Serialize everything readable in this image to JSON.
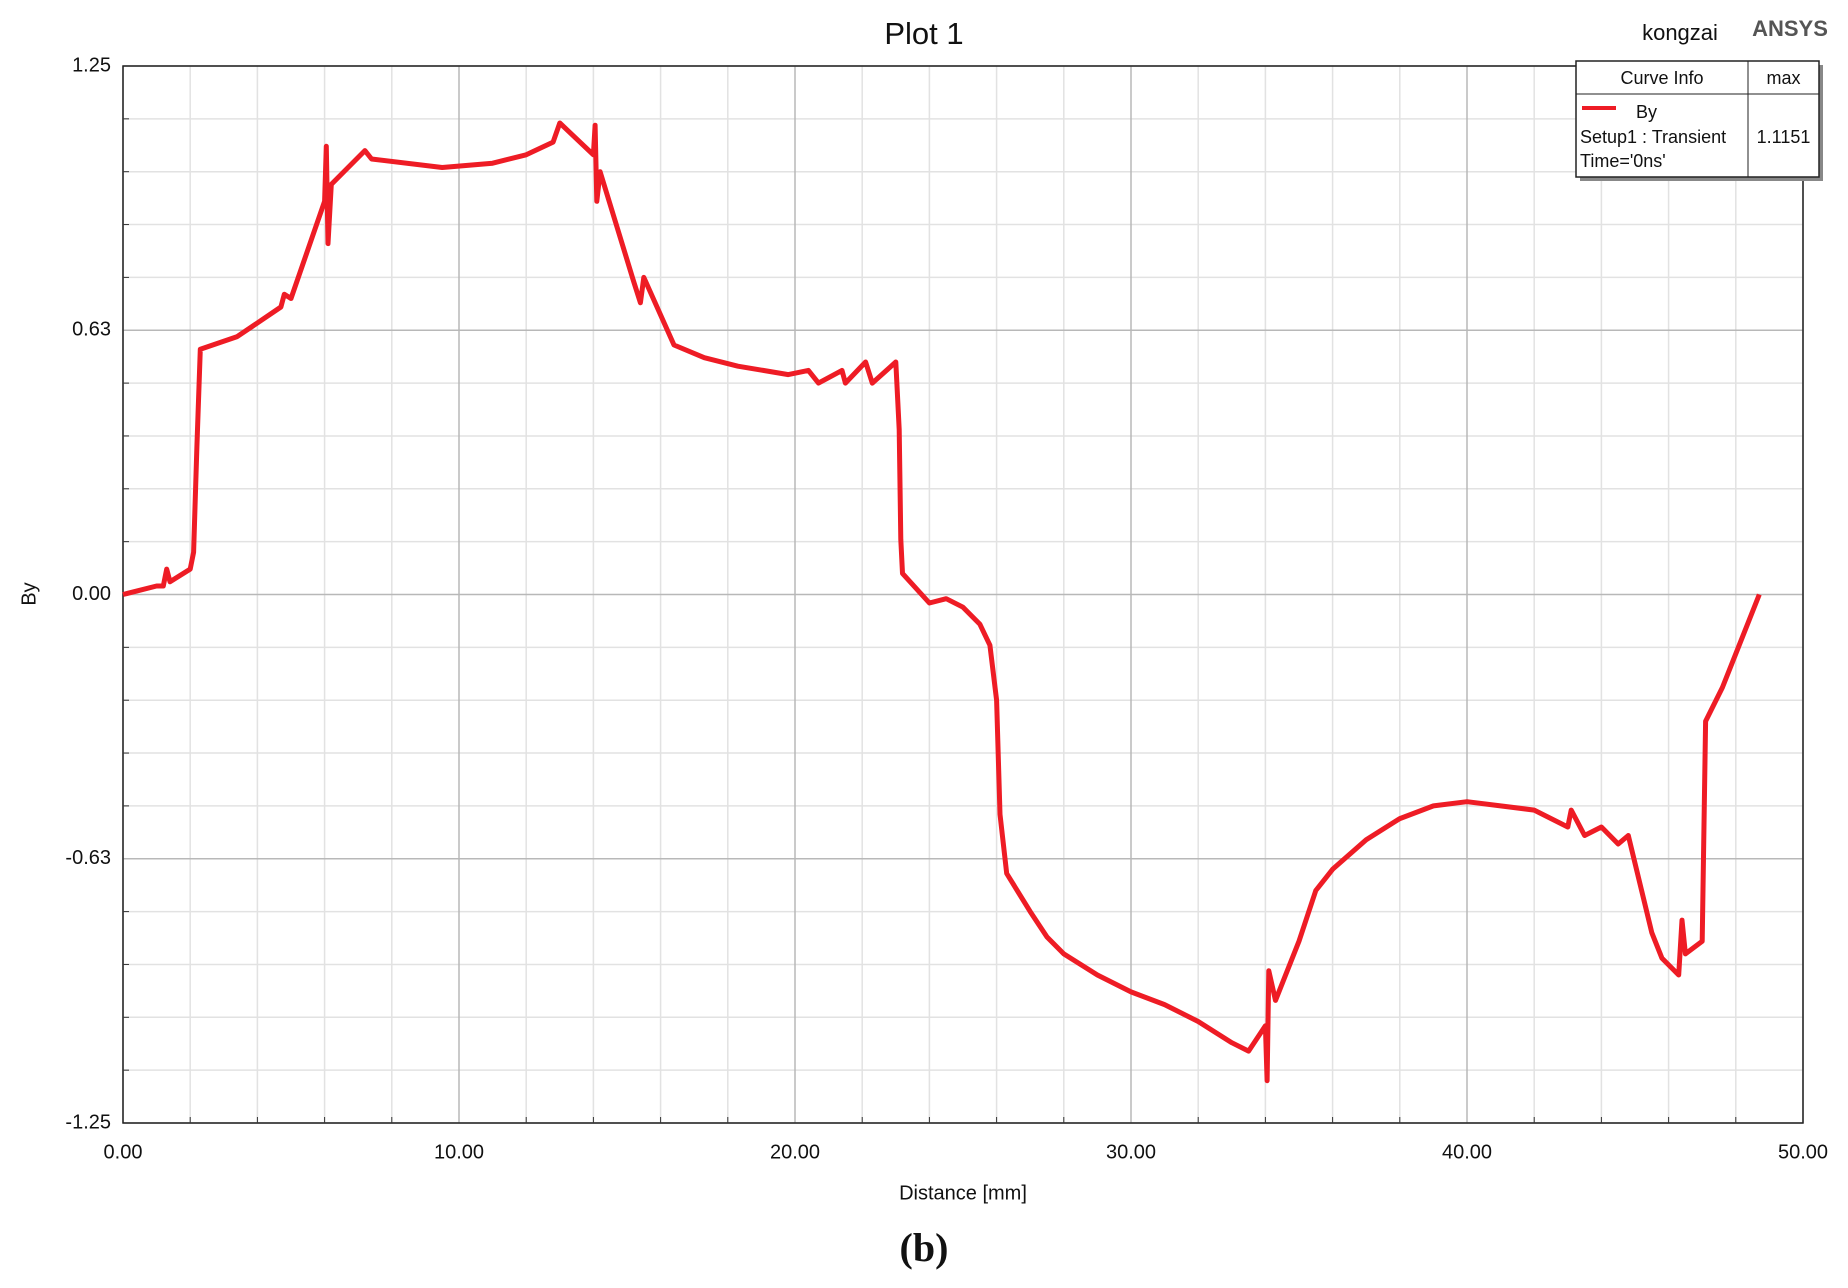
{
  "chart_data": {
    "type": "line",
    "title": "Plot 1",
    "user": "kongzai",
    "brand": "ANSYS",
    "caption": "(b)",
    "xlabel": "Distance [mm]",
    "ylabel": "By",
    "xlim": [
      0,
      50
    ],
    "ylim": [
      -1.25,
      1.25
    ],
    "xticks": [
      {
        "value": 0,
        "label": "0.00"
      },
      {
        "value": 10,
        "label": "10.00"
      },
      {
        "value": 20,
        "label": "20.00"
      },
      {
        "value": 30,
        "label": "30.00"
      },
      {
        "value": 40,
        "label": "40.00"
      },
      {
        "value": 50,
        "label": "50.00"
      }
    ],
    "yticks": [
      {
        "value": -1.25,
        "label": "-1.25"
      },
      {
        "value": -0.625,
        "label": "-0.63"
      },
      {
        "value": 0,
        "label": "0.00"
      },
      {
        "value": 0.625,
        "label": "0.63"
      },
      {
        "value": 1.25,
        "label": "1.25"
      }
    ],
    "grid": true,
    "legend": {
      "header": [
        "Curve Info",
        "max"
      ],
      "lines": [
        "Setup1 : Transient",
        "Time='0ns'"
      ],
      "max": 1.1151
    },
    "x": [
      0,
      1.0,
      1.2,
      1.3,
      1.4,
      2.0,
      2.1,
      2.2,
      2.3,
      3.4,
      4.7,
      4.8,
      5.0,
      6.0,
      6.05,
      6.1,
      6.2,
      7.2,
      7.4,
      9.5,
      11.0,
      12.0,
      12.8,
      13.0,
      14.0,
      14.05,
      14.1,
      14.2,
      15.2,
      15.4,
      15.5,
      16.4,
      17.3,
      18.3,
      19.8,
      20.4,
      20.7,
      21.4,
      21.5,
      22.1,
      22.3,
      23.0,
      23.1,
      23.15,
      23.2,
      24.0,
      24.5,
      25.0,
      25.5,
      25.8,
      26.0,
      26.1,
      26.3,
      27.0,
      27.5,
      28.0,
      29.0,
      30.0,
      31.0,
      32.0,
      33.0,
      33.5,
      34.0,
      34.05,
      34.1,
      34.3,
      35.0,
      35.5,
      36.0,
      37.0,
      38.0,
      39.0,
      40.0,
      41.0,
      42.0,
      43.0,
      43.1,
      43.5,
      44.0,
      44.5,
      44.8,
      45.5,
      45.8,
      46.3,
      46.4,
      46.5,
      47.0,
      47.1,
      47.6,
      48.1,
      48.7
    ],
    "series": [
      {
        "name": "By",
        "color": "#ee1c25",
        "values": [
          0,
          0.02,
          0.02,
          0.06,
          0.03,
          0.06,
          0.1,
          0.35,
          0.58,
          0.61,
          0.68,
          0.71,
          0.7,
          0.93,
          1.06,
          0.83,
          0.97,
          1.05,
          1.03,
          1.01,
          1.02,
          1.04,
          1.07,
          1.1151,
          1.04,
          1.11,
          0.93,
          1.0,
          0.74,
          0.69,
          0.75,
          0.59,
          0.56,
          0.54,
          0.52,
          0.53,
          0.5,
          0.53,
          0.5,
          0.55,
          0.5,
          0.55,
          0.39,
          0.13,
          0.05,
          -0.02,
          -0.01,
          -0.03,
          -0.07,
          -0.12,
          -0.25,
          -0.52,
          -0.66,
          -0.75,
          -0.81,
          -0.85,
          -0.9,
          -0.94,
          -0.97,
          -1.01,
          -1.06,
          -1.08,
          -1.02,
          -1.15,
          -0.89,
          -0.96,
          -0.82,
          -0.7,
          -0.65,
          -0.58,
          -0.53,
          -0.5,
          -0.49,
          -0.5,
          -0.51,
          -0.55,
          -0.51,
          -0.57,
          -0.55,
          -0.59,
          -0.57,
          -0.8,
          -0.86,
          -0.9,
          -0.77,
          -0.85,
          -0.82,
          -0.3,
          -0.22,
          -0.12,
          0
        ]
      }
    ]
  }
}
